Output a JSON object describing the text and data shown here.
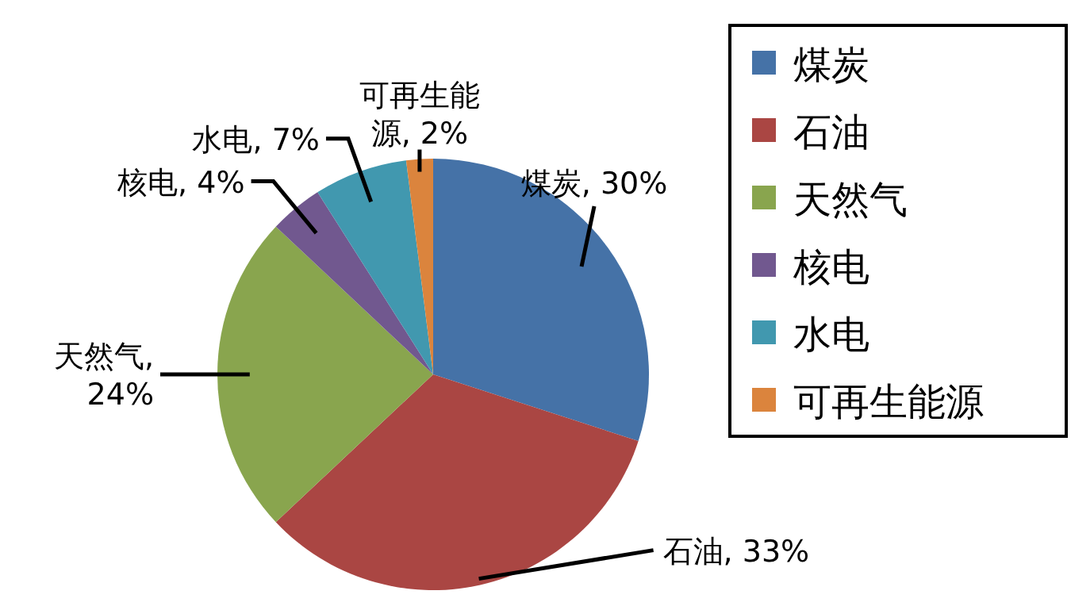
{
  "chart_data": {
    "type": "pie",
    "categories": [
      "煤炭",
      "石油",
      "天然气",
      "核电",
      "水电",
      "可再生能源"
    ],
    "values": [
      30,
      33,
      24,
      4,
      7,
      2
    ],
    "colors": [
      "#4572a7",
      "#aa4643",
      "#89a54e",
      "#71588f",
      "#4198af",
      "#db843d"
    ],
    "value_labels": [
      "煤炭, 30%",
      "石油, 33%",
      "天然气, 24%",
      "核电, 4%",
      "水电, 7%",
      "可再生能源, 2%"
    ],
    "legend": "right"
  }
}
